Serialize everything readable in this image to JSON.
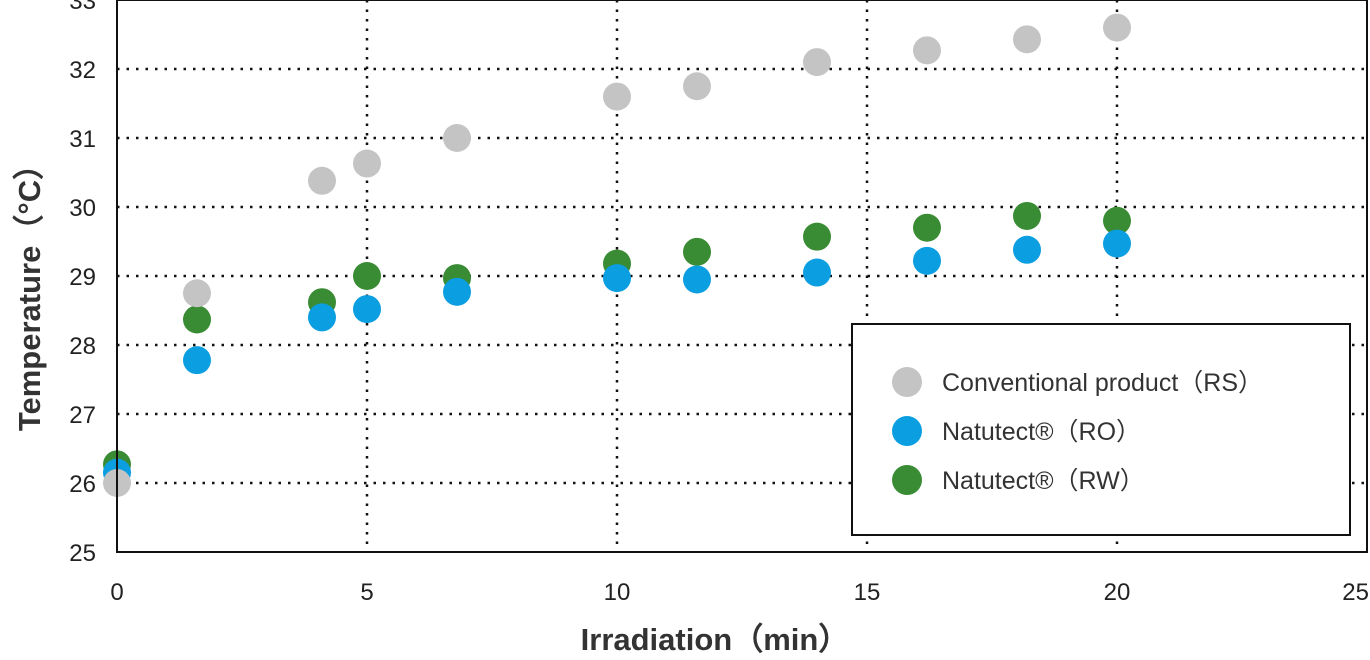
{
  "chart_data": {
    "type": "scatter",
    "xlabel": "Irradiation（min）",
    "ylabel": "Temperature（°C）",
    "xlim": [
      0,
      25
    ],
    "ylim": [
      25,
      33
    ],
    "xticks": [
      "0",
      "5",
      "10",
      "15",
      "20",
      "25"
    ],
    "yticks": [
      "25",
      "26",
      "27",
      "28",
      "29",
      "30",
      "31",
      "32",
      "33"
    ],
    "grid": "dotted",
    "legend_position": "lower-right",
    "series": [
      {
        "name": "Conventional product（RS）",
        "color": "#c4c4c4",
        "points": [
          {
            "x": 0,
            "y": 26.0
          },
          {
            "x": 1.6,
            "y": 28.75
          },
          {
            "x": 4.1,
            "y": 30.38
          },
          {
            "x": 5.0,
            "y": 30.63
          },
          {
            "x": 6.8,
            "y": 31.0
          },
          {
            "x": 10.0,
            "y": 31.6
          },
          {
            "x": 11.6,
            "y": 31.75
          },
          {
            "x": 14.0,
            "y": 32.1
          },
          {
            "x": 16.2,
            "y": 32.27
          },
          {
            "x": 18.2,
            "y": 32.43
          },
          {
            "x": 20.0,
            "y": 32.6
          }
        ]
      },
      {
        "name": "Natutect®（RO）",
        "color": "#0b9ee0",
        "points": [
          {
            "x": 0,
            "y": 26.15
          },
          {
            "x": 1.6,
            "y": 27.78
          },
          {
            "x": 4.1,
            "y": 28.4
          },
          {
            "x": 5.0,
            "y": 28.52
          },
          {
            "x": 6.8,
            "y": 28.77
          },
          {
            "x": 10.0,
            "y": 28.97
          },
          {
            "x": 11.6,
            "y": 28.95
          },
          {
            "x": 14.0,
            "y": 29.05
          },
          {
            "x": 16.2,
            "y": 29.22
          },
          {
            "x": 18.2,
            "y": 29.38
          },
          {
            "x": 20.0,
            "y": 29.47
          }
        ]
      },
      {
        "name": "Natutect®（RW）",
        "color": "#3a8c34",
        "points": [
          {
            "x": 0,
            "y": 26.27
          },
          {
            "x": 1.6,
            "y": 28.37
          },
          {
            "x": 4.1,
            "y": 28.62
          },
          {
            "x": 5.0,
            "y": 29.0
          },
          {
            "x": 6.8,
            "y": 28.97
          },
          {
            "x": 10.0,
            "y": 29.18
          },
          {
            "x": 11.6,
            "y": 29.35
          },
          {
            "x": 14.0,
            "y": 29.57
          },
          {
            "x": 16.2,
            "y": 29.7
          },
          {
            "x": 18.2,
            "y": 29.87
          },
          {
            "x": 20.0,
            "y": 29.8
          }
        ]
      }
    ]
  }
}
